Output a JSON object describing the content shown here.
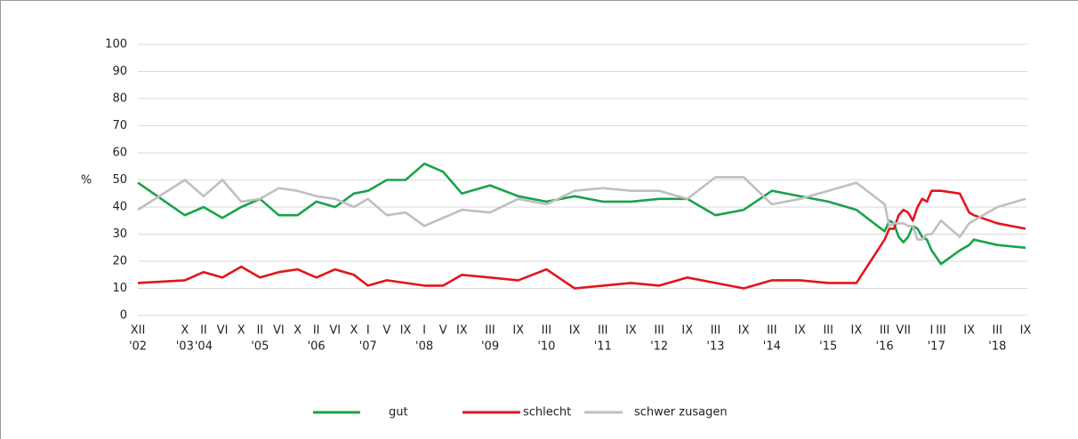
{
  "chart_data": {
    "type": "line",
    "y_label": "%",
    "x": [
      0,
      10,
      14,
      18,
      22,
      26,
      30,
      34,
      38,
      42,
      46,
      49,
      53,
      57,
      61,
      65,
      69,
      75,
      81,
      87,
      93,
      99,
      105,
      111,
      117,
      123,
      129,
      135,
      141,
      147,
      153,
      159,
      160,
      161,
      162,
      163,
      164,
      165,
      166,
      167,
      168,
      169,
      171,
      175,
      177,
      178,
      183,
      189
    ],
    "series": [
      {
        "name": "gut",
        "color": "#1aa24b",
        "values": [
          49,
          37,
          40,
          36,
          40,
          43,
          37,
          37,
          42,
          40,
          45,
          46,
          50,
          50,
          56,
          53,
          45,
          48,
          44,
          42,
          44,
          42,
          42,
          43,
          43,
          37,
          39,
          46,
          44,
          42,
          39,
          31,
          35,
          34,
          29,
          27,
          29,
          33,
          32,
          29,
          28,
          24,
          19,
          24,
          26,
          28,
          26,
          25
        ]
      },
      {
        "name": "schlecht",
        "color": "#e3141b",
        "values": [
          12,
          13,
          16,
          14,
          18,
          14,
          16,
          17,
          14,
          17,
          15,
          11,
          13,
          12,
          11,
          11,
          15,
          14,
          13,
          17,
          10,
          11,
          12,
          11,
          14,
          12,
          10,
          13,
          13,
          12,
          12,
          28,
          32,
          32,
          37,
          39,
          38,
          35,
          40,
          43,
          42,
          46,
          46,
          45,
          38,
          37,
          34,
          32
        ]
      },
      {
        "name": "schwer zusagen",
        "color": "#bfbfbf",
        "values": [
          39,
          50,
          44,
          50,
          42,
          43,
          47,
          46,
          44,
          43,
          40,
          43,
          37,
          38,
          33,
          36,
          39,
          38,
          43,
          41,
          46,
          47,
          46,
          46,
          43,
          51,
          51,
          41,
          43,
          46,
          49,
          41,
          33,
          34,
          34,
          34,
          33,
          33,
          28,
          28,
          30,
          30,
          35,
          29,
          34,
          35,
          40,
          43
        ]
      }
    ],
    "xlim": [
      0,
      189
    ],
    "xticks": [
      {
        "value": 0,
        "label": "XII"
      },
      {
        "value": 10,
        "label": "X"
      },
      {
        "value": 14,
        "label": "II"
      },
      {
        "value": 18,
        "label": "VI"
      },
      {
        "value": 22,
        "label": "X"
      },
      {
        "value": 26,
        "label": "II"
      },
      {
        "value": 30,
        "label": "VI"
      },
      {
        "value": 34,
        "label": "X"
      },
      {
        "value": 38,
        "label": "II"
      },
      {
        "value": 42,
        "label": "VI"
      },
      {
        "value": 46,
        "label": "X"
      },
      {
        "value": 49,
        "label": "I"
      },
      {
        "value": 53,
        "label": "V"
      },
      {
        "value": 57,
        "label": "IX"
      },
      {
        "value": 61,
        "label": "I"
      },
      {
        "value": 65,
        "label": "V"
      },
      {
        "value": 69,
        "label": "IX"
      },
      {
        "value": 75,
        "label": "III"
      },
      {
        "value": 81,
        "label": "IX"
      },
      {
        "value": 87,
        "label": "III"
      },
      {
        "value": 93,
        "label": "IX"
      },
      {
        "value": 99,
        "label": "III"
      },
      {
        "value": 105,
        "label": "IX"
      },
      {
        "value": 111,
        "label": "III"
      },
      {
        "value": 117,
        "label": "IX"
      },
      {
        "value": 123,
        "label": "III"
      },
      {
        "value": 129,
        "label": "IX"
      },
      {
        "value": 135,
        "label": "III"
      },
      {
        "value": 141,
        "label": "IX"
      },
      {
        "value": 147,
        "label": "III"
      },
      {
        "value": 153,
        "label": "IX"
      },
      {
        "value": 159,
        "label": "III"
      },
      {
        "value": 163,
        "label": "VII"
      },
      {
        "value": 169,
        "label": "I"
      },
      {
        "value": 171,
        "label": "III"
      },
      {
        "value": 177,
        "label": "IX"
      },
      {
        "value": 183,
        "label": "III"
      },
      {
        "value": 189,
        "label": "IX"
      }
    ],
    "year_ticks": [
      {
        "value": 0,
        "label": "'02"
      },
      {
        "value": 10,
        "label": "'03"
      },
      {
        "value": 14,
        "label": "'04"
      },
      {
        "value": 26,
        "label": "'05"
      },
      {
        "value": 38,
        "label": "'06"
      },
      {
        "value": 49,
        "label": "'07"
      },
      {
        "value": 61,
        "label": "'08"
      },
      {
        "value": 75,
        "label": "'09"
      },
      {
        "value": 87,
        "label": "'10"
      },
      {
        "value": 99,
        "label": "'11"
      },
      {
        "value": 111,
        "label": "'12"
      },
      {
        "value": 123,
        "label": "'13"
      },
      {
        "value": 135,
        "label": "'14"
      },
      {
        "value": 147,
        "label": "'15"
      },
      {
        "value": 159,
        "label": "'16"
      },
      {
        "value": 170,
        "label": "'17"
      },
      {
        "value": 183,
        "label": "'18"
      }
    ],
    "ylim": [
      0,
      100
    ],
    "yticks": [
      0,
      10,
      20,
      30,
      40,
      50,
      60,
      70,
      80,
      90,
      100
    ],
    "grid": true,
    "legend": "bottom"
  }
}
